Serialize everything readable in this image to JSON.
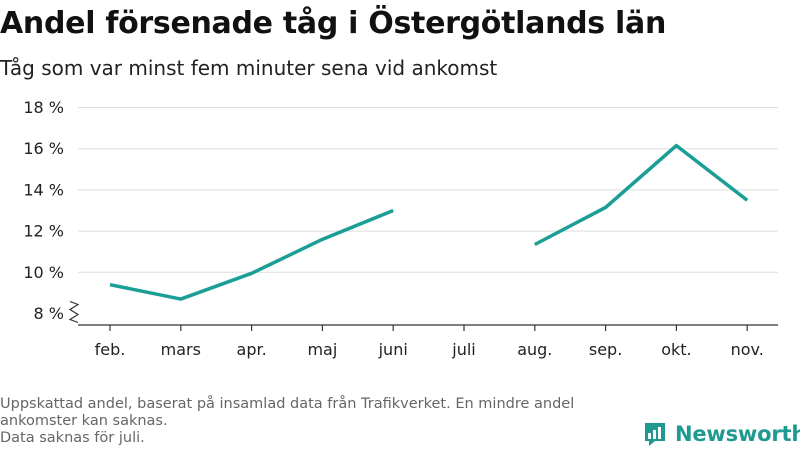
{
  "title": "Andel försenade tåg i Östergötlands län",
  "subtitle": "Tåg som var minst fem minuter sena vid ankomst",
  "footnote": {
    "line1": "Uppskattad andel, baserat på insamlad data från Trafikverket. En mindre andel ankomster kan saknas.",
    "line2": "Data saknas för juli."
  },
  "logo": {
    "text": "Newsworthy",
    "icon": "newsworthy-logo-icon",
    "color": "#1f9a91"
  },
  "chart_data": {
    "type": "line",
    "title": "Andel försenade tåg i Östergötlands län",
    "subtitle": "Tåg som var minst fem minuter sena vid ankomst",
    "categories": [
      "feb.",
      "mars",
      "apr.",
      "maj",
      "juni",
      "juli",
      "aug.",
      "sep.",
      "okt.",
      "nov."
    ],
    "series": [
      {
        "values": [
          9.4,
          8.7,
          9.95,
          11.6,
          13.0,
          null,
          11.35,
          13.15,
          16.15,
          13.5
        ],
        "color": "#1a9e96"
      }
    ],
    "yticks": [
      8,
      10,
      12,
      14,
      16,
      18
    ],
    "ytick_labels": [
      "8 %",
      "10 %",
      "12 %",
      "14 %",
      "16 %",
      "18 %"
    ],
    "ylim": [
      8,
      18
    ],
    "y_axis_break": true,
    "grid": true,
    "xlabel": "",
    "ylabel": ""
  }
}
